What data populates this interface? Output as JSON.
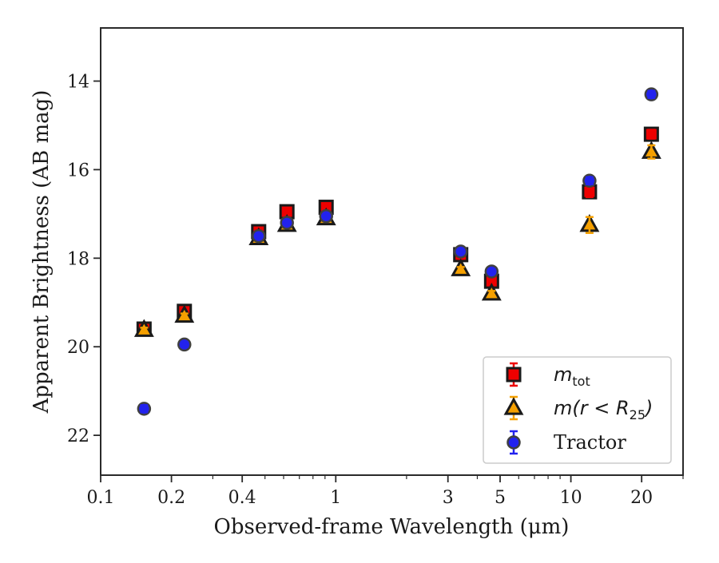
{
  "chart_data": {
    "type": "scatter",
    "title": "",
    "xlabel": "Observed-frame Wavelength (μm)",
    "ylabel": "Apparent Brightness (AB mag)",
    "xscale": "log",
    "xlim": [
      0.1,
      30
    ],
    "ylim": [
      22.9,
      12.8
    ],
    "y_inverted": true,
    "grid": false,
    "legend_position": "lower-right",
    "x_ticks": [
      0.1,
      0.2,
      0.4,
      1,
      3,
      5,
      10,
      20
    ],
    "x_tick_labels": [
      "0.1",
      "0.2",
      "0.4",
      "1",
      "3",
      "5",
      "10",
      "20"
    ],
    "y_ticks": [
      14,
      16,
      18,
      20,
      22
    ],
    "y_tick_labels": [
      "14",
      "16",
      "18",
      "20",
      "22"
    ],
    "series": [
      {
        "name": "m_tot",
        "legend_main": "m",
        "legend_sub": "tot",
        "marker": "square",
        "color": "#ee0000",
        "edge_color": "#1a1a1a",
        "x": [
          0.153,
          0.227,
          0.47,
          0.62,
          0.91,
          3.4,
          4.6,
          12.0,
          22.0
        ],
        "y": [
          19.6,
          19.2,
          17.4,
          16.95,
          16.85,
          17.92,
          18.52,
          16.5,
          15.2
        ],
        "err": [
          0.05,
          0.05,
          0.03,
          0.03,
          0.03,
          0.05,
          0.06,
          0.12,
          0.1
        ]
      },
      {
        "name": "m(r < R_25)",
        "legend_main": "m(r < R",
        "legend_sub": "25",
        "legend_close": ")",
        "marker": "triangle",
        "color": "#f5a000",
        "edge_color": "#1a1a1a",
        "x": [
          0.153,
          0.227,
          0.47,
          0.62,
          0.91,
          3.4,
          4.6,
          12.0,
          22.0
        ],
        "y": [
          19.62,
          19.3,
          17.55,
          17.25,
          17.1,
          18.25,
          18.8,
          17.25,
          15.6
        ],
        "err": [
          0.05,
          0.05,
          0.03,
          0.03,
          0.03,
          0.05,
          0.06,
          0.18,
          0.15
        ]
      },
      {
        "name": "Tractor",
        "legend_main": "Tractor",
        "marker": "circle",
        "color": "#2222ee",
        "edge_color": "#404040",
        "x": [
          0.153,
          0.227,
          0.47,
          0.62,
          0.91,
          3.4,
          4.6,
          12.0,
          22.0
        ],
        "y": [
          21.4,
          19.95,
          17.5,
          17.2,
          17.05,
          17.85,
          18.3,
          16.25,
          14.3
        ],
        "err": [
          0.08,
          0.06,
          0.03,
          0.03,
          0.03,
          0.04,
          0.05,
          0.08,
          0.08
        ]
      }
    ]
  }
}
